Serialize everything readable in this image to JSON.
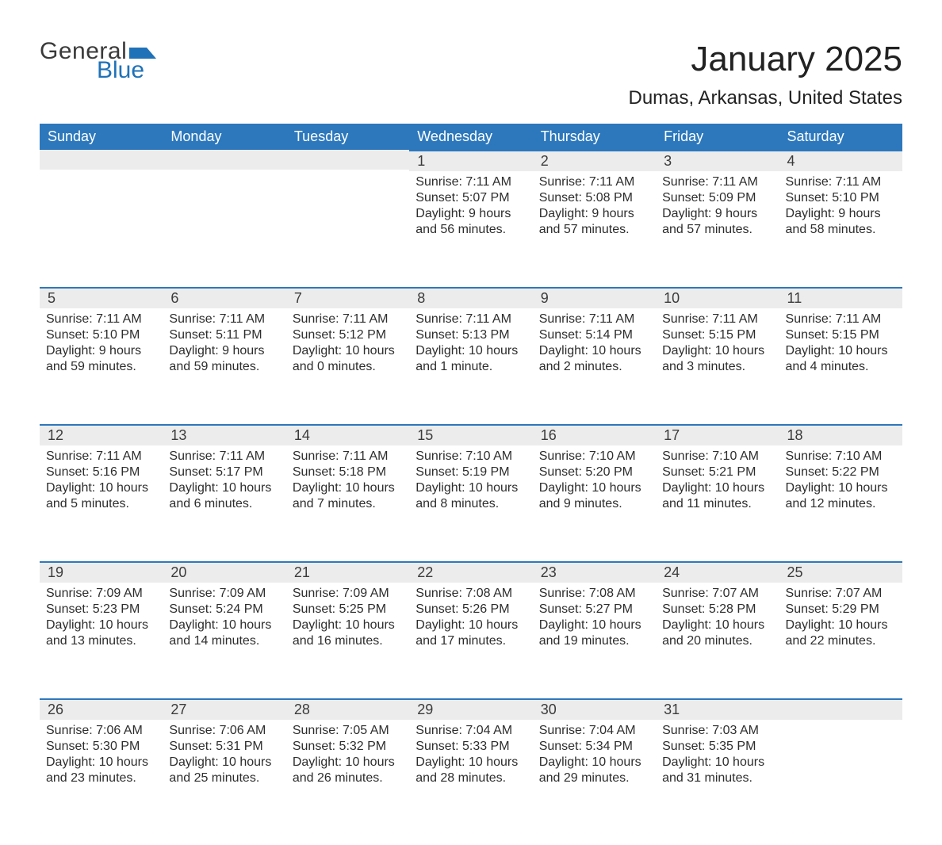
{
  "logo": {
    "text_general": "General",
    "text_blue": "Blue",
    "flag_color": "#1f72b8"
  },
  "header": {
    "month_title": "January 2025",
    "location": "Dumas, Arkansas, United States"
  },
  "colors": {
    "header_bg": "#2d78bc",
    "header_text": "#ffffff",
    "daynum_bg": "#ececec",
    "daynum_border": "#2d78bc",
    "text": "#2d2d2d",
    "page_bg": "#ffffff"
  },
  "weekdays": [
    "Sunday",
    "Monday",
    "Tuesday",
    "Wednesday",
    "Thursday",
    "Friday",
    "Saturday"
  ],
  "labels": {
    "sunrise": "Sunrise:",
    "sunset": "Sunset:",
    "daylight": "Daylight:"
  },
  "weeks": [
    [
      null,
      null,
      null,
      {
        "day": "1",
        "sunrise": "7:11 AM",
        "sunset": "5:07 PM",
        "daylight": "9 hours and 56 minutes."
      },
      {
        "day": "2",
        "sunrise": "7:11 AM",
        "sunset": "5:08 PM",
        "daylight": "9 hours and 57 minutes."
      },
      {
        "day": "3",
        "sunrise": "7:11 AM",
        "sunset": "5:09 PM",
        "daylight": "9 hours and 57 minutes."
      },
      {
        "day": "4",
        "sunrise": "7:11 AM",
        "sunset": "5:10 PM",
        "daylight": "9 hours and 58 minutes."
      }
    ],
    [
      {
        "day": "5",
        "sunrise": "7:11 AM",
        "sunset": "5:10 PM",
        "daylight": "9 hours and 59 minutes."
      },
      {
        "day": "6",
        "sunrise": "7:11 AM",
        "sunset": "5:11 PM",
        "daylight": "9 hours and 59 minutes."
      },
      {
        "day": "7",
        "sunrise": "7:11 AM",
        "sunset": "5:12 PM",
        "daylight": "10 hours and 0 minutes."
      },
      {
        "day": "8",
        "sunrise": "7:11 AM",
        "sunset": "5:13 PM",
        "daylight": "10 hours and 1 minute."
      },
      {
        "day": "9",
        "sunrise": "7:11 AM",
        "sunset": "5:14 PM",
        "daylight": "10 hours and 2 minutes."
      },
      {
        "day": "10",
        "sunrise": "7:11 AM",
        "sunset": "5:15 PM",
        "daylight": "10 hours and 3 minutes."
      },
      {
        "day": "11",
        "sunrise": "7:11 AM",
        "sunset": "5:15 PM",
        "daylight": "10 hours and 4 minutes."
      }
    ],
    [
      {
        "day": "12",
        "sunrise": "7:11 AM",
        "sunset": "5:16 PM",
        "daylight": "10 hours and 5 minutes."
      },
      {
        "day": "13",
        "sunrise": "7:11 AM",
        "sunset": "5:17 PM",
        "daylight": "10 hours and 6 minutes."
      },
      {
        "day": "14",
        "sunrise": "7:11 AM",
        "sunset": "5:18 PM",
        "daylight": "10 hours and 7 minutes."
      },
      {
        "day": "15",
        "sunrise": "7:10 AM",
        "sunset": "5:19 PM",
        "daylight": "10 hours and 8 minutes."
      },
      {
        "day": "16",
        "sunrise": "7:10 AM",
        "sunset": "5:20 PM",
        "daylight": "10 hours and 9 minutes."
      },
      {
        "day": "17",
        "sunrise": "7:10 AM",
        "sunset": "5:21 PM",
        "daylight": "10 hours and 11 minutes."
      },
      {
        "day": "18",
        "sunrise": "7:10 AM",
        "sunset": "5:22 PM",
        "daylight": "10 hours and 12 minutes."
      }
    ],
    [
      {
        "day": "19",
        "sunrise": "7:09 AM",
        "sunset": "5:23 PM",
        "daylight": "10 hours and 13 minutes."
      },
      {
        "day": "20",
        "sunrise": "7:09 AM",
        "sunset": "5:24 PM",
        "daylight": "10 hours and 14 minutes."
      },
      {
        "day": "21",
        "sunrise": "7:09 AM",
        "sunset": "5:25 PM",
        "daylight": "10 hours and 16 minutes."
      },
      {
        "day": "22",
        "sunrise": "7:08 AM",
        "sunset": "5:26 PM",
        "daylight": "10 hours and 17 minutes."
      },
      {
        "day": "23",
        "sunrise": "7:08 AM",
        "sunset": "5:27 PM",
        "daylight": "10 hours and 19 minutes."
      },
      {
        "day": "24",
        "sunrise": "7:07 AM",
        "sunset": "5:28 PM",
        "daylight": "10 hours and 20 minutes."
      },
      {
        "day": "25",
        "sunrise": "7:07 AM",
        "sunset": "5:29 PM",
        "daylight": "10 hours and 22 minutes."
      }
    ],
    [
      {
        "day": "26",
        "sunrise": "7:06 AM",
        "sunset": "5:30 PM",
        "daylight": "10 hours and 23 minutes."
      },
      {
        "day": "27",
        "sunrise": "7:06 AM",
        "sunset": "5:31 PM",
        "daylight": "10 hours and 25 minutes."
      },
      {
        "day": "28",
        "sunrise": "7:05 AM",
        "sunset": "5:32 PM",
        "daylight": "10 hours and 26 minutes."
      },
      {
        "day": "29",
        "sunrise": "7:04 AM",
        "sunset": "5:33 PM",
        "daylight": "10 hours and 28 minutes."
      },
      {
        "day": "30",
        "sunrise": "7:04 AM",
        "sunset": "5:34 PM",
        "daylight": "10 hours and 29 minutes."
      },
      {
        "day": "31",
        "sunrise": "7:03 AM",
        "sunset": "5:35 PM",
        "daylight": "10 hours and 31 minutes."
      },
      null
    ]
  ]
}
